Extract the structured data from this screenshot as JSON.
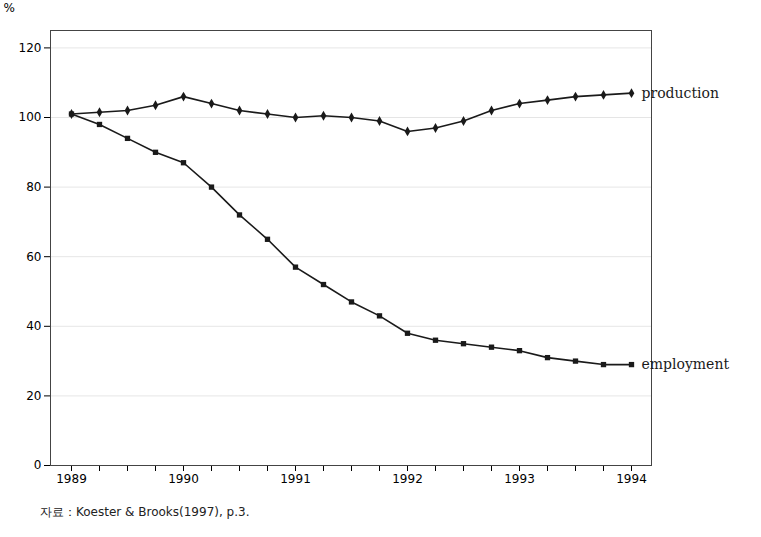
{
  "chart_data": {
    "type": "line",
    "caption": "자료：Koester & Brooks(1997), p.3.",
    "ylabel": "%",
    "categories": [
      "1989",
      null,
      null,
      null,
      "1990",
      null,
      null,
      null,
      "1991",
      null,
      null,
      null,
      "1992",
      null,
      null,
      null,
      "1993",
      null,
      null,
      null,
      "1994"
    ],
    "series": [
      {
        "name": "production",
        "color": "#1a1a1a",
        "marker": "diamond",
        "values": [
          101,
          101.5,
          102,
          103.5,
          106,
          104,
          102,
          101,
          100,
          100.5,
          100,
          99,
          96,
          97,
          99,
          102,
          104,
          105,
          106,
          106.5,
          107
        ]
      },
      {
        "name": "employment",
        "color": "#1a1a1a",
        "marker": "square",
        "values": [
          101,
          98,
          94,
          90,
          87,
          80,
          72,
          65,
          57,
          52,
          47,
          43,
          38,
          36,
          35,
          34,
          33,
          31,
          30,
          29,
          29
        ]
      }
    ],
    "ylim": [
      0,
      125
    ],
    "yticks": [
      0,
      20,
      40,
      60,
      80,
      100,
      120
    ],
    "grid": true
  }
}
